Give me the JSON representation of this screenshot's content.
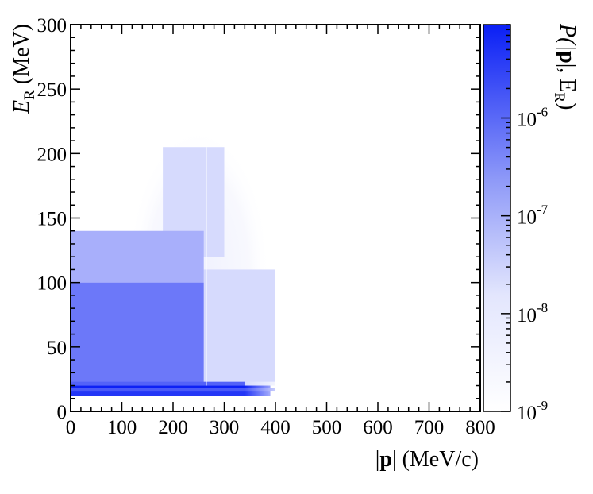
{
  "chart_data": {
    "type": "heatmap",
    "title": "",
    "x_axis": {
      "label_prefix": "|",
      "label_bold": "p",
      "label_suffix": "| (MeV/c)",
      "range": [
        0,
        800
      ],
      "major_ticks": [
        0,
        100,
        200,
        300,
        400,
        500,
        600,
        700,
        800
      ],
      "tick_labels": [
        "0",
        "100",
        "200",
        "300",
        "400",
        "500",
        "600",
        "700",
        "800"
      ]
    },
    "y_axis": {
      "label_main": "E",
      "label_sub": "R",
      "label_suffix": " (MeV)",
      "range": [
        0,
        300
      ],
      "major_ticks": [
        0,
        50,
        100,
        150,
        200,
        250,
        300
      ],
      "tick_labels": [
        "0",
        "50",
        "100",
        "150",
        "200",
        "250",
        "300"
      ]
    },
    "z_axis": {
      "label_prefix": "P(|",
      "label_bold": "p",
      "label_middle": "|, E",
      "label_sub": "R",
      "label_suffix": ")",
      "scale": "log",
      "range": [
        1e-09,
        9e-06
      ],
      "tick_bases": [
        "10",
        "10",
        "10",
        "10"
      ],
      "tick_exponents": [
        "-9",
        "-8",
        "-7",
        "-6"
      ],
      "tick_values": [
        1e-09,
        1e-08,
        1e-07,
        1e-06
      ]
    },
    "colormap": [
      "#ffffff",
      "#0a1ff5"
    ],
    "regions": [
      {
        "x": [
          0,
          390
        ],
        "y": [
          12,
          16
        ],
        "z": 3e-06
      },
      {
        "x": [
          0,
          400
        ],
        "y": [
          16,
          18
        ],
        "z": 6e-07
      },
      {
        "x": [
          0,
          390
        ],
        "y": [
          18,
          20
        ],
        "z": 8e-06
      },
      {
        "x": [
          0,
          340
        ],
        "y": [
          20,
          23
        ],
        "z": 4e-07
      },
      {
        "x": [
          0,
          260
        ],
        "y": [
          20,
          100
        ],
        "z": 1.5e-07
      },
      {
        "x": [
          0,
          260
        ],
        "y": [
          100,
          140
        ],
        "z": 1.5e-08
      },
      {
        "x": [
          260,
          400
        ],
        "y": [
          20,
          110
        ],
        "z": 3e-09
      },
      {
        "x": [
          180,
          300
        ],
        "y": [
          120,
          205
        ],
        "z": 3e-09
      }
    ],
    "grid": false,
    "legend": "color bar on right"
  }
}
